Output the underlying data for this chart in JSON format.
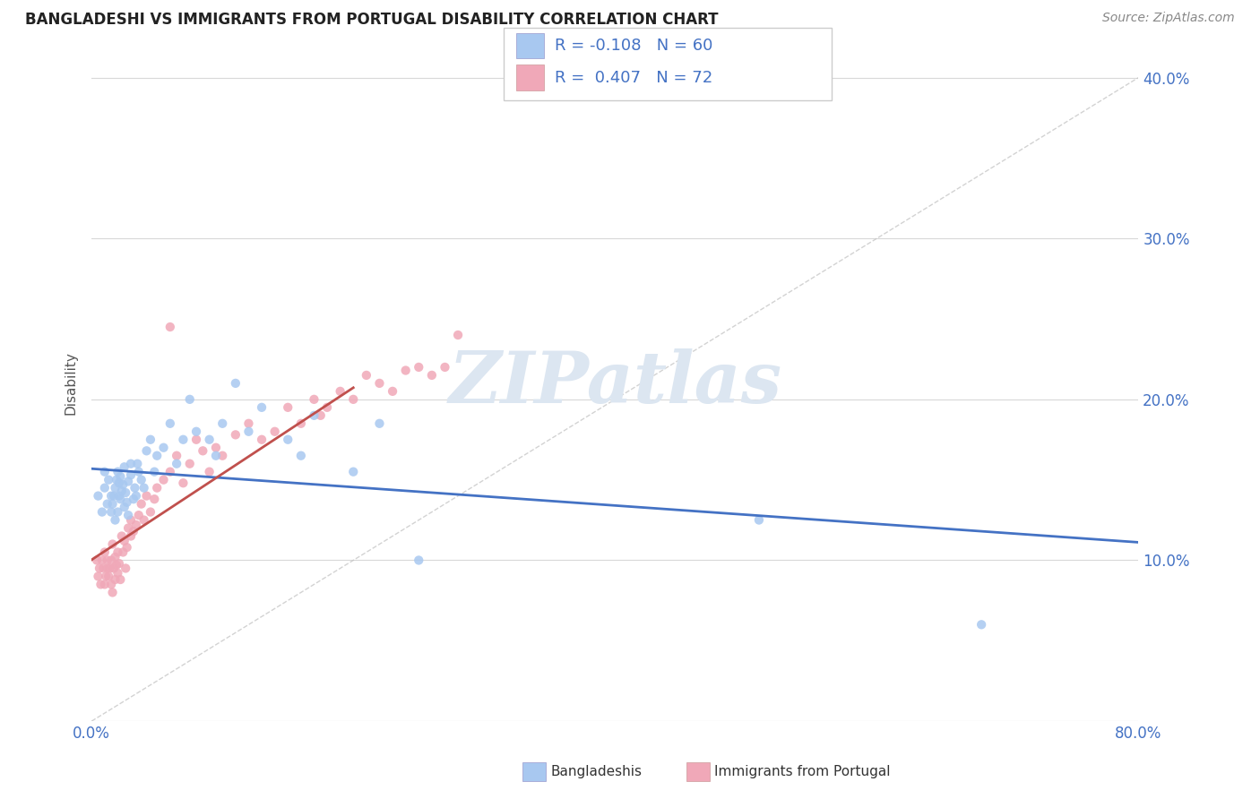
{
  "title": "BANGLADESHI VS IMMIGRANTS FROM PORTUGAL DISABILITY CORRELATION CHART",
  "source": "Source: ZipAtlas.com",
  "ylabel": "Disability",
  "xlim": [
    0.0,
    0.8
  ],
  "ylim": [
    0.0,
    0.42
  ],
  "blue_color": "#a8c8f0",
  "pink_color": "#f0a8b8",
  "trend_blue": "#4472c4",
  "trend_pink": "#c0504d",
  "bangladeshi_x": [
    0.005,
    0.008,
    0.01,
    0.01,
    0.012,
    0.013,
    0.015,
    0.015,
    0.016,
    0.017,
    0.018,
    0.018,
    0.019,
    0.02,
    0.02,
    0.021,
    0.021,
    0.022,
    0.022,
    0.023,
    0.024,
    0.025,
    0.025,
    0.026,
    0.027,
    0.028,
    0.028,
    0.03,
    0.03,
    0.032,
    0.033,
    0.034,
    0.035,
    0.036,
    0.038,
    0.04,
    0.042,
    0.045,
    0.048,
    0.05,
    0.055,
    0.06,
    0.065,
    0.07,
    0.075,
    0.08,
    0.09,
    0.095,
    0.1,
    0.11,
    0.12,
    0.13,
    0.15,
    0.16,
    0.17,
    0.2,
    0.22,
    0.25,
    0.51,
    0.68
  ],
  "bangladeshi_y": [
    0.14,
    0.13,
    0.145,
    0.155,
    0.135,
    0.15,
    0.13,
    0.14,
    0.135,
    0.14,
    0.125,
    0.145,
    0.15,
    0.13,
    0.155,
    0.14,
    0.148,
    0.138,
    0.152,
    0.143,
    0.147,
    0.133,
    0.158,
    0.142,
    0.136,
    0.128,
    0.149,
    0.153,
    0.16,
    0.138,
    0.145,
    0.14,
    0.16,
    0.155,
    0.15,
    0.145,
    0.168,
    0.175,
    0.155,
    0.165,
    0.17,
    0.185,
    0.16,
    0.175,
    0.2,
    0.18,
    0.175,
    0.165,
    0.185,
    0.21,
    0.18,
    0.195,
    0.175,
    0.165,
    0.19,
    0.155,
    0.185,
    0.1,
    0.125,
    0.06
  ],
  "portugal_x": [
    0.004,
    0.005,
    0.006,
    0.007,
    0.008,
    0.009,
    0.01,
    0.01,
    0.011,
    0.012,
    0.012,
    0.013,
    0.014,
    0.015,
    0.015,
    0.016,
    0.016,
    0.017,
    0.018,
    0.018,
    0.019,
    0.02,
    0.02,
    0.021,
    0.022,
    0.023,
    0.024,
    0.025,
    0.026,
    0.027,
    0.028,
    0.03,
    0.03,
    0.032,
    0.034,
    0.036,
    0.038,
    0.04,
    0.042,
    0.045,
    0.048,
    0.05,
    0.055,
    0.06,
    0.065,
    0.07,
    0.075,
    0.08,
    0.085,
    0.09,
    0.095,
    0.1,
    0.11,
    0.12,
    0.13,
    0.14,
    0.15,
    0.16,
    0.17,
    0.175,
    0.18,
    0.19,
    0.2,
    0.21,
    0.22,
    0.23,
    0.24,
    0.25,
    0.26,
    0.27,
    0.28,
    0.06
  ],
  "portugal_y": [
    0.1,
    0.09,
    0.095,
    0.085,
    0.1,
    0.095,
    0.085,
    0.105,
    0.09,
    0.095,
    0.1,
    0.09,
    0.095,
    0.085,
    0.1,
    0.08,
    0.11,
    0.095,
    0.088,
    0.102,
    0.097,
    0.092,
    0.105,
    0.098,
    0.088,
    0.115,
    0.105,
    0.112,
    0.095,
    0.108,
    0.12,
    0.115,
    0.125,
    0.118,
    0.122,
    0.128,
    0.135,
    0.125,
    0.14,
    0.13,
    0.138,
    0.145,
    0.15,
    0.155,
    0.165,
    0.148,
    0.16,
    0.175,
    0.168,
    0.155,
    0.17,
    0.165,
    0.178,
    0.185,
    0.175,
    0.18,
    0.195,
    0.185,
    0.2,
    0.19,
    0.195,
    0.205,
    0.2,
    0.215,
    0.21,
    0.205,
    0.218,
    0.22,
    0.215,
    0.22,
    0.24,
    0.245
  ]
}
